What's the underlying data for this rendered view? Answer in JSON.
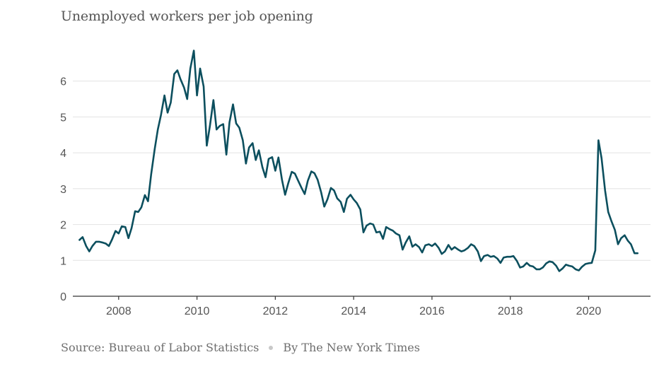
{
  "title": "Unemployed workers per job opening",
  "footer": {
    "source": "Source: Bureau of Labor Statistics",
    "byline": "By The New York Times"
  },
  "chart_data": {
    "type": "line",
    "title": "Unemployed workers per job opening",
    "xlabel": "",
    "ylabel": "",
    "xlim": [
      2006.83,
      2021.58
    ],
    "ylim": [
      0,
      7
    ],
    "xticks": [
      2008,
      2010,
      2012,
      2014,
      2016,
      2018,
      2020
    ],
    "yticks": [
      0,
      1,
      2,
      3,
      4,
      5,
      6
    ],
    "grid": true,
    "color": "#0c4f5e",
    "series": [
      {
        "x": [
          2007.0,
          2007.08,
          2007.17,
          2007.25,
          2007.33,
          2007.42,
          2007.5,
          2007.58,
          2007.67,
          2007.75,
          2007.83,
          2007.92,
          2008.0,
          2008.08,
          2008.17,
          2008.25,
          2008.33,
          2008.42,
          2008.5,
          2008.58,
          2008.67,
          2008.75,
          2008.83,
          2008.92,
          2009.0,
          2009.08,
          2009.17,
          2009.25,
          2009.33,
          2009.42,
          2009.5,
          2009.58,
          2009.67,
          2009.75,
          2009.83,
          2009.92,
          2010.0,
          2010.08,
          2010.17,
          2010.25,
          2010.33,
          2010.42,
          2010.5,
          2010.58,
          2010.67,
          2010.75,
          2010.83,
          2010.92,
          2011.0,
          2011.08,
          2011.17,
          2011.25,
          2011.33,
          2011.42,
          2011.5,
          2011.58,
          2011.67,
          2011.75,
          2011.83,
          2011.92,
          2012.0,
          2012.08,
          2012.17,
          2012.25,
          2012.33,
          2012.42,
          2012.5,
          2012.58,
          2012.67,
          2012.75,
          2012.83,
          2012.92,
          2013.0,
          2013.08,
          2013.17,
          2013.25,
          2013.33,
          2013.42,
          2013.5,
          2013.58,
          2013.67,
          2013.75,
          2013.83,
          2013.92,
          2014.0,
          2014.08,
          2014.17,
          2014.25,
          2014.33,
          2014.42,
          2014.5,
          2014.58,
          2014.67,
          2014.75,
          2014.83,
          2014.92,
          2015.0,
          2015.08,
          2015.17,
          2015.25,
          2015.33,
          2015.42,
          2015.5,
          2015.58,
          2015.67,
          2015.75,
          2015.83,
          2015.92,
          2016.0,
          2016.08,
          2016.17,
          2016.25,
          2016.33,
          2016.42,
          2016.5,
          2016.58,
          2016.67,
          2016.75,
          2016.83,
          2016.92,
          2017.0,
          2017.08,
          2017.17,
          2017.25,
          2017.33,
          2017.42,
          2017.5,
          2017.58,
          2017.67,
          2017.75,
          2017.83,
          2017.92,
          2018.0,
          2018.08,
          2018.17,
          2018.25,
          2018.33,
          2018.42,
          2018.5,
          2018.58,
          2018.67,
          2018.75,
          2018.83,
          2018.92,
          2019.0,
          2019.08,
          2019.17,
          2019.25,
          2019.33,
          2019.42,
          2019.5,
          2019.58,
          2019.67,
          2019.75,
          2019.83,
          2019.92,
          2020.0,
          2020.08,
          2020.17,
          2020.25,
          2020.33,
          2020.42,
          2020.5,
          2020.58,
          2020.67,
          2020.75,
          2020.83,
          2020.92,
          2021.0,
          2021.08,
          2021.17,
          2021.25
        ],
        "y": [
          1.57,
          1.65,
          1.4,
          1.25,
          1.4,
          1.52,
          1.52,
          1.5,
          1.47,
          1.4,
          1.58,
          1.82,
          1.75,
          1.95,
          1.93,
          1.62,
          1.9,
          2.37,
          2.35,
          2.48,
          2.82,
          2.65,
          3.4,
          4.1,
          4.65,
          5.05,
          5.6,
          5.12,
          5.4,
          6.2,
          6.3,
          6.05,
          5.82,
          5.5,
          6.35,
          6.85,
          5.6,
          6.35,
          5.85,
          4.2,
          4.75,
          5.47,
          4.65,
          4.75,
          4.8,
          3.95,
          4.85,
          5.35,
          4.82,
          4.7,
          4.35,
          3.7,
          4.15,
          4.27,
          3.8,
          4.07,
          3.6,
          3.32,
          3.83,
          3.88,
          3.5,
          3.87,
          3.25,
          2.83,
          3.15,
          3.47,
          3.42,
          3.23,
          3.02,
          2.85,
          3.22,
          3.48,
          3.43,
          3.25,
          2.9,
          2.5,
          2.7,
          3.02,
          2.95,
          2.73,
          2.63,
          2.35,
          2.72,
          2.83,
          2.7,
          2.6,
          2.42,
          1.78,
          1.97,
          2.03,
          2.0,
          1.78,
          1.8,
          1.6,
          1.93,
          1.87,
          1.83,
          1.75,
          1.7,
          1.3,
          1.5,
          1.67,
          1.38,
          1.45,
          1.37,
          1.22,
          1.42,
          1.45,
          1.4,
          1.47,
          1.35,
          1.18,
          1.25,
          1.43,
          1.3,
          1.37,
          1.3,
          1.25,
          1.28,
          1.35,
          1.45,
          1.4,
          1.25,
          0.98,
          1.12,
          1.15,
          1.1,
          1.12,
          1.05,
          0.93,
          1.08,
          1.1,
          1.1,
          1.12,
          0.98,
          0.8,
          0.83,
          0.93,
          0.85,
          0.83,
          0.75,
          0.75,
          0.8,
          0.92,
          0.97,
          0.95,
          0.85,
          0.7,
          0.77,
          0.88,
          0.85,
          0.83,
          0.75,
          0.72,
          0.82,
          0.9,
          0.92,
          0.93,
          1.28,
          4.35,
          3.85,
          2.95,
          2.35,
          2.1,
          1.85,
          1.45,
          1.62,
          1.7,
          1.55,
          1.45,
          1.2,
          1.2
        ]
      }
    ]
  }
}
